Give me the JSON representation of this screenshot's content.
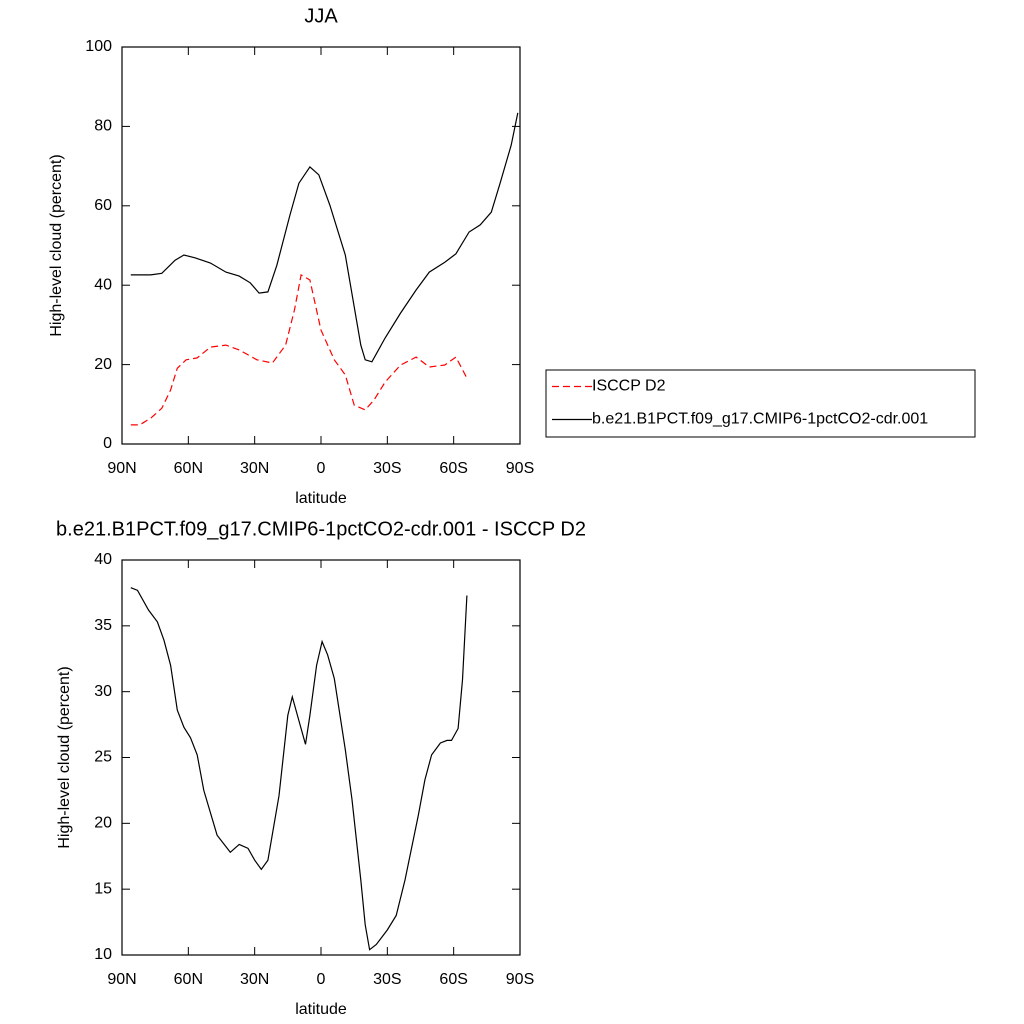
{
  "chart_data": [
    {
      "type": "line",
      "title": "JJA",
      "xlabel": "latitude",
      "ylabel": "High-level cloud (percent)",
      "xlim": [
        90,
        -90
      ],
      "xticks": [
        {
          "value": 90,
          "label": "90N"
        },
        {
          "value": 60,
          "label": "60N"
        },
        {
          "value": 30,
          "label": "30N"
        },
        0,
        {
          "value": -30,
          "label": "30S"
        },
        {
          "value": -60,
          "label": "60S"
        },
        {
          "value": -90,
          "label": "90S"
        }
      ],
      "ylim": [
        0,
        100
      ],
      "yticks": [
        0,
        20,
        40,
        60,
        80,
        100
      ],
      "legend": "right",
      "series": [
        {
          "name": "ISCCP D2",
          "color": "#ff0000",
          "dashed": true,
          "x": [
            86,
            82,
            77,
            72,
            68,
            65,
            61,
            56,
            50,
            43,
            37,
            29,
            22,
            16,
            12,
            9,
            5,
            0,
            -6,
            -11,
            -15,
            -20,
            -24,
            -29,
            -36,
            -43,
            -49,
            -56,
            -61,
            -66
          ],
          "values": [
            4.8,
            4.8,
            6.5,
            9,
            13.6,
            19.1,
            21.2,
            21.7,
            24.4,
            24.9,
            23.7,
            21.2,
            20.4,
            24.9,
            33.8,
            42.6,
            41.3,
            28.7,
            21.2,
            17.4,
            9.8,
            8.6,
            11.1,
            15.6,
            19.9,
            21.9,
            19.4,
            19.9,
            21.9,
            16.6
          ]
        },
        {
          "name": "b.e21.B1PCT.f09_g17.CMIP6-1pctCO2-cdr.001",
          "color": "#000000",
          "dashed": false,
          "x": [
            86,
            77,
            72,
            66,
            62,
            57,
            50,
            43,
            37,
            32,
            28,
            24,
            20,
            14,
            10,
            5,
            1,
            -4,
            -11,
            -18,
            -20,
            -23,
            -29,
            -36,
            -43,
            -49,
            -56,
            -61,
            -67,
            -72,
            -77,
            -81,
            -86,
            -89
          ],
          "values": [
            42.6,
            42.6,
            43,
            46.3,
            47.6,
            46.9,
            45.6,
            43.3,
            42.3,
            40.6,
            38,
            38.3,
            45,
            57.7,
            65.7,
            69.8,
            67.8,
            60.2,
            47.6,
            24.9,
            21.2,
            20.7,
            26.7,
            33,
            38.8,
            43.3,
            45.8,
            47.9,
            53.4,
            55.2,
            58.4,
            65.7,
            75.3,
            83.4
          ]
        }
      ]
    },
    {
      "type": "line",
      "title": "b.e21.B1PCT.f09_g17.CMIP6-1pctCO2-cdr.001 - ISCCP D2",
      "xlabel": "latitude",
      "ylabel": "High-level cloud (percent)",
      "xlim": [
        90,
        -90
      ],
      "xticks": [
        {
          "value": 90,
          "label": "90N"
        },
        {
          "value": 60,
          "label": "60N"
        },
        {
          "value": 30,
          "label": "30N"
        },
        0,
        {
          "value": -30,
          "label": "30S"
        },
        {
          "value": -60,
          "label": "60S"
        },
        {
          "value": -90,
          "label": "90S"
        }
      ],
      "ylim": [
        10,
        40
      ],
      "yticks": [
        10,
        15,
        20,
        25,
        30,
        35,
        40
      ],
      "series": [
        {
          "color": "#000000",
          "dashed": false,
          "x": [
            86,
            83,
            78,
            74,
            71,
            68,
            65,
            62,
            59,
            56,
            53,
            47,
            41,
            37,
            33,
            30,
            27,
            24,
            19,
            15,
            13,
            10,
            7,
            5,
            2,
            -0.5,
            -3,
            -6,
            -11,
            -14,
            -18,
            -20,
            -22,
            -25,
            -30,
            -34,
            -38,
            -44,
            -47,
            -50,
            -54,
            -57,
            -59,
            -62,
            -64,
            -66
          ],
          "values": [
            37.9,
            37.7,
            36.2,
            35.3,
            33.9,
            32,
            28.6,
            27.3,
            26.5,
            25.2,
            22.5,
            19.1,
            17.8,
            18.4,
            18.1,
            17.2,
            16.5,
            17.2,
            22.1,
            28.2,
            29.6,
            27.8,
            26,
            28.2,
            32,
            33.8,
            32.8,
            31,
            25.6,
            21.8,
            15.7,
            12.3,
            10.4,
            10.8,
            11.9,
            13,
            15.7,
            20.6,
            23.3,
            25.2,
            26.1,
            26.3,
            26.3,
            27.2,
            30.9,
            37.3
          ]
        }
      ]
    }
  ]
}
